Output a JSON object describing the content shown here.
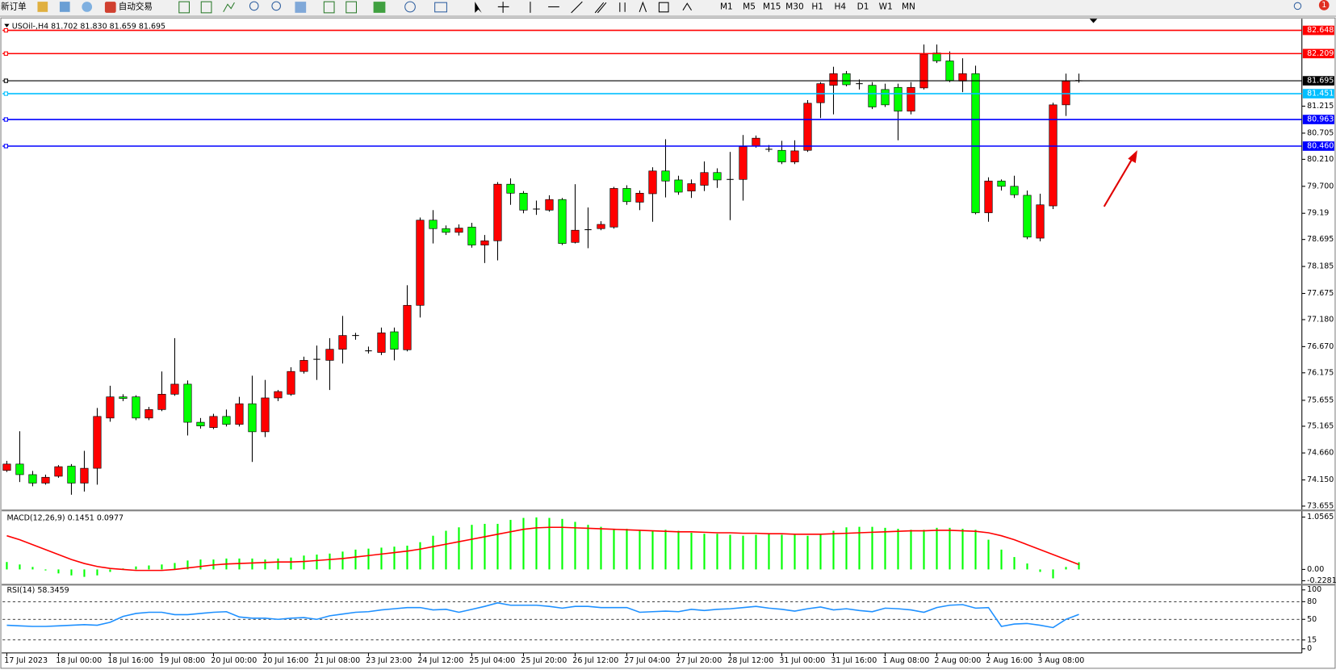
{
  "toolbar": {
    "new_order": "新订单",
    "auto_trading": "自动交易",
    "timeframes": [
      "M1",
      "M5",
      "M15",
      "M30",
      "H1",
      "H4",
      "D1",
      "W1",
      "MN"
    ],
    "notification_count": "1"
  },
  "chart_data": [
    {
      "type": "candlestick",
      "title": "USOil-,H4  81.702 81.830 81.659 81.695",
      "categories": [
        "17 Jul 2023",
        null,
        null,
        null,
        "18 Jul 00:00",
        null,
        null,
        null,
        "18 Jul 16:00",
        null,
        null,
        null,
        "19 Jul 08:00",
        null,
        null,
        null,
        "20 Jul 00:00",
        null,
        null,
        null,
        "20 Jul 16:00",
        null,
        null,
        null,
        "21 Jul 08:00",
        null,
        null,
        null,
        "23 Jul 23:00",
        null,
        null,
        null,
        "24 Jul 12:00",
        null,
        null,
        null,
        "25 Jul 04:00",
        null,
        null,
        null,
        "25 Jul 20:00",
        null,
        null,
        null,
        "26 Jul 12:00",
        null,
        null,
        null,
        "27 Jul 04:00",
        null,
        null,
        null,
        "27 Jul 20:00",
        null,
        null,
        null,
        "28 Jul 12:00",
        null,
        null,
        null,
        "31 Jul 00:00",
        null,
        null,
        null,
        "31 Jul 16:00",
        null,
        null,
        null,
        "1 Aug 08:00",
        null,
        null,
        null,
        "2 Aug 00:00",
        null,
        null,
        null,
        "2 Aug 16:00",
        null,
        null,
        null,
        "3 Aug 08:00",
        null,
        null,
        null
      ],
      "open": [
        74.33,
        74.45,
        74.25,
        74.09,
        74.22,
        74.41,
        74.09,
        74.37,
        75.32,
        75.72,
        75.72,
        75.32,
        75.48,
        75.77,
        75.96,
        75.24,
        75.14,
        75.35,
        75.2,
        75.59,
        75.06,
        75.7,
        75.77,
        76.2,
        76.43,
        76.41,
        76.62,
        76.88,
        76.59,
        76.56,
        76.95,
        76.61,
        77.45,
        79.06,
        78.9,
        78.83,
        78.93,
        78.59,
        78.67,
        79.74,
        79.57,
        79.27,
        79.25,
        79.45,
        78.64,
        78.88,
        78.9,
        78.93,
        79.66,
        79.4,
        79.56,
        79.99,
        79.82,
        79.61,
        79.72,
        79.96,
        79.83,
        79.83,
        80.46,
        80.4,
        80.38,
        80.16,
        80.38,
        81.28,
        81.61,
        81.83,
        81.64,
        81.61,
        81.53,
        81.57,
        81.12,
        81.56,
        82.22,
        82.07,
        81.69,
        81.83,
        79.2,
        79.8,
        79.7,
        79.53,
        78.72,
        79.33,
        81.24,
        81.702
      ],
      "high": [
        74.51,
        75.07,
        74.32,
        74.25,
        74.43,
        74.45,
        74.7,
        75.51,
        75.93,
        75.77,
        75.75,
        75.53,
        76.2,
        76.83,
        76.03,
        75.32,
        75.4,
        75.48,
        75.72,
        76.12,
        76.04,
        75.85,
        76.28,
        76.48,
        76.69,
        76.83,
        77.25,
        76.93,
        76.67,
        77.03,
        77.03,
        77.83,
        79.11,
        79.25,
        78.96,
        78.98,
        79.01,
        78.78,
        79.78,
        79.85,
        79.61,
        79.43,
        79.53,
        79.48,
        79.74,
        79.3,
        79.04,
        79.69,
        79.72,
        79.62,
        80.06,
        80.59,
        79.9,
        79.83,
        80.17,
        80.04,
        80.35,
        80.67,
        80.66,
        80.48,
        80.56,
        80.57,
        81.33,
        81.67,
        81.96,
        81.88,
        81.72,
        81.67,
        81.64,
        81.64,
        81.67,
        82.38,
        82.38,
        82.25,
        82.12,
        81.98,
        79.87,
        79.83,
        79.9,
        79.62,
        79.56,
        81.28,
        81.83,
        81.83
      ],
      "low": [
        74.3,
        74.11,
        74.03,
        74.06,
        74.19,
        73.87,
        73.93,
        74.06,
        75.25,
        75.64,
        75.28,
        75.28,
        75.45,
        75.74,
        74.99,
        75.12,
        75.11,
        75.16,
        75.16,
        74.49,
        74.96,
        75.64,
        75.74,
        76.16,
        76.04,
        75.85,
        76.35,
        76.8,
        76.54,
        76.51,
        76.41,
        76.58,
        77.22,
        78.62,
        78.78,
        78.77,
        78.54,
        78.25,
        78.3,
        79.35,
        79.19,
        79.16,
        79.22,
        78.59,
        78.62,
        78.53,
        78.87,
        78.9,
        79.35,
        79.25,
        79.03,
        79.49,
        79.54,
        79.48,
        79.61,
        79.67,
        79.06,
        79.43,
        80.43,
        80.35,
        80.12,
        80.12,
        80.35,
        80.99,
        81.06,
        81.59,
        81.53,
        81.16,
        81.2,
        80.57,
        81.06,
        81.53,
        82.03,
        81.67,
        81.48,
        79.17,
        79.03,
        79.62,
        79.48,
        78.7,
        78.66,
        79.27,
        81.03,
        81.659
      ],
      "close": [
        74.45,
        74.25,
        74.09,
        74.2,
        74.4,
        74.09,
        74.37,
        75.35,
        75.72,
        75.69,
        75.32,
        75.48,
        75.77,
        75.96,
        75.24,
        75.17,
        75.35,
        75.2,
        75.59,
        75.06,
        75.7,
        75.82,
        76.2,
        76.41,
        76.43,
        76.62,
        76.88,
        76.88,
        76.59,
        76.93,
        76.62,
        77.45,
        79.06,
        78.9,
        78.83,
        78.91,
        78.59,
        78.67,
        79.74,
        79.57,
        79.25,
        79.27,
        79.45,
        78.62,
        78.87,
        78.88,
        78.98,
        79.66,
        79.41,
        79.57,
        79.99,
        79.8,
        79.59,
        79.75,
        79.96,
        79.82,
        79.83,
        80.45,
        80.61,
        80.4,
        80.16,
        80.37,
        81.27,
        81.64,
        81.83,
        81.62,
        81.64,
        81.2,
        81.24,
        81.12,
        81.57,
        82.2,
        82.07,
        81.7,
        81.83,
        79.2,
        79.8,
        79.7,
        79.54,
        78.74,
        79.35,
        81.24,
        81.69,
        81.695
      ],
      "up_color": "#ff0000",
      "down_color": "#00ff00",
      "ylim": [
        73.59,
        82.77
      ],
      "yticks": [
        81.215,
        {
          "value": 80.705,
          "label": "80.705"
        },
        {
          "value": 80.21,
          "label": "80.210"
        },
        {
          "value": 79.7,
          "label": "79.700"
        },
        79.19,
        78.695,
        78.185,
        77.675,
        {
          "value": 77.18,
          "label": "77.180"
        },
        {
          "value": 76.67,
          "label": "76.670"
        },
        76.175,
        75.655,
        75.165,
        {
          "value": 74.66,
          "label": "74.660"
        },
        {
          "value": 74.15,
          "label": "74.150"
        },
        73.655
      ],
      "hlines": [
        {
          "value": 82.648,
          "color": "#ff0000"
        },
        {
          "value": 82.209,
          "color": "#ff0000"
        },
        {
          "value": 81.695,
          "color": "#000000"
        },
        {
          "value": 81.451,
          "color": "#00bfff"
        },
        {
          "value": 80.963,
          "color": "#0000ff"
        },
        {
          "value": 80.46,
          "label": "80.460",
          "color": "#0000ff"
        }
      ]
    },
    {
      "type": "macd",
      "title": "MACD(12,26,9) 0.1451 0.0977",
      "series": [
        {
          "type": "bar",
          "color": "#00ff00",
          "values": [
            0.15,
            0.1,
            0.05,
            -0.02,
            -0.08,
            -0.12,
            -0.15,
            -0.12,
            -0.05,
            0.02,
            0.06,
            0.08,
            0.1,
            0.13,
            0.18,
            0.2,
            0.2,
            0.22,
            0.22,
            0.22,
            0.2,
            0.22,
            0.24,
            0.28,
            0.3,
            0.32,
            0.36,
            0.4,
            0.42,
            0.44,
            0.46,
            0.48,
            0.55,
            0.68,
            0.78,
            0.85,
            0.9,
            0.92,
            0.92,
            1.0,
            1.04,
            1.05,
            1.04,
            1.02,
            0.96,
            0.9,
            0.86,
            0.82,
            0.82,
            0.8,
            0.78,
            0.8,
            0.78,
            0.74,
            0.72,
            0.72,
            0.7,
            0.68,
            0.7,
            0.72,
            0.7,
            0.7,
            0.68,
            0.72,
            0.78,
            0.85,
            0.86,
            0.86,
            0.84,
            0.82,
            0.8,
            0.8,
            0.84,
            0.84,
            0.82,
            0.8,
            0.6,
            0.4,
            0.25,
            0.12,
            -0.05,
            -0.18,
            0.05,
            0.1451
          ]
        },
        {
          "type": "line",
          "color": "#ff0000",
          "values": [
            0.68,
            0.6,
            0.5,
            0.4,
            0.3,
            0.2,
            0.12,
            0.06,
            0.02,
            0.0,
            -0.02,
            -0.02,
            -0.02,
            0.0,
            0.03,
            0.06,
            0.09,
            0.11,
            0.12,
            0.13,
            0.14,
            0.15,
            0.15,
            0.16,
            0.18,
            0.2,
            0.22,
            0.25,
            0.28,
            0.31,
            0.34,
            0.37,
            0.41,
            0.46,
            0.51,
            0.56,
            0.61,
            0.66,
            0.71,
            0.76,
            0.81,
            0.84,
            0.85,
            0.85,
            0.84,
            0.83,
            0.82,
            0.81,
            0.8,
            0.79,
            0.78,
            0.77,
            0.76,
            0.76,
            0.75,
            0.74,
            0.74,
            0.73,
            0.73,
            0.72,
            0.72,
            0.71,
            0.71,
            0.71,
            0.72,
            0.73,
            0.74,
            0.75,
            0.76,
            0.77,
            0.78,
            0.78,
            0.79,
            0.79,
            0.78,
            0.77,
            0.74,
            0.68,
            0.6,
            0.5,
            0.4,
            0.3,
            0.2,
            0.0977
          ]
        }
      ],
      "ylim": [
        -0.29,
        1.14
      ],
      "yticks": [
        1.0565,
        {
          "value": 0,
          "label": "0.00"
        },
        -0.2281
      ]
    },
    {
      "type": "line",
      "title": "RSI(14) 58.3459",
      "series": [
        {
          "color": "#1e90ff",
          "values": [
            40,
            39,
            38,
            38,
            39,
            40,
            41,
            40,
            45,
            55,
            60,
            62,
            62,
            58,
            58,
            60,
            62,
            63,
            54,
            52,
            52,
            50,
            52,
            53,
            50,
            56,
            59,
            62,
            63,
            66,
            68,
            70,
            70,
            66,
            67,
            62,
            67,
            72,
            78,
            74,
            74,
            74,
            72,
            69,
            72,
            72,
            70,
            70,
            70,
            62,
            63,
            64,
            63,
            67,
            65,
            67,
            68,
            70,
            72,
            69,
            67,
            64,
            68,
            71,
            66,
            68,
            65,
            63,
            69,
            68,
            66,
            62,
            70,
            74,
            75,
            69,
            70,
            38,
            42,
            43,
            40,
            36,
            50,
            58.3459
          ]
        }
      ],
      "ylim": [
        -7,
        106
      ],
      "yticks": [
        100,
        80,
        50,
        15,
        0
      ],
      "levels": [
        80,
        50,
        15
      ]
    }
  ]
}
